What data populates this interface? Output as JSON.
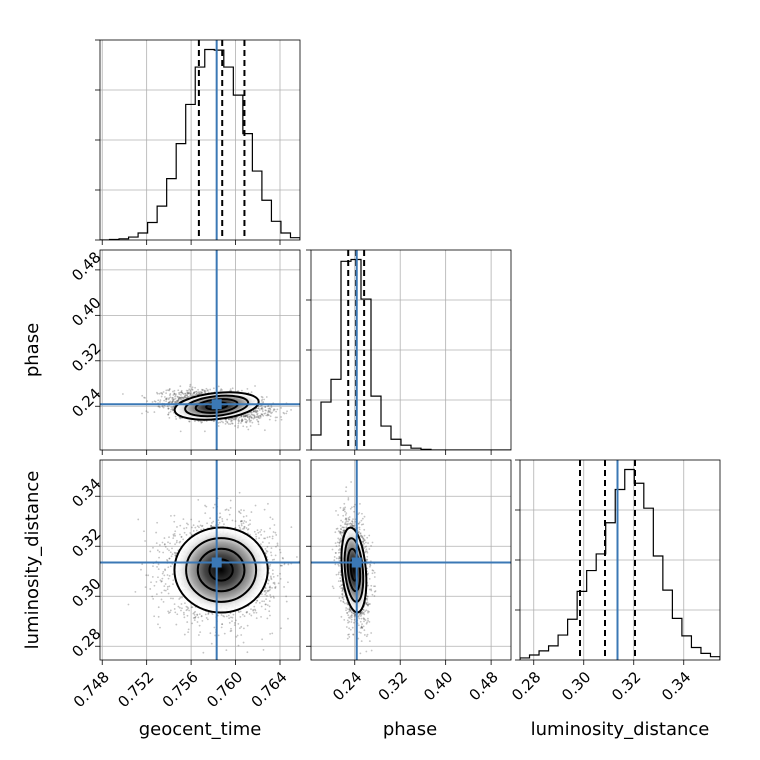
{
  "chart_data": {
    "type": "corner",
    "parameters": [
      "geocent_time",
      "phase",
      "luminosity_distance"
    ],
    "truth": {
      "geocent_time": 0.7583,
      "phase": 0.2435,
      "luminosity_distance": 0.3135
    },
    "quantiles": {
      "geocent_time": [
        0.7567,
        0.7588,
        0.7608
      ],
      "phase": [
        0.2285,
        0.2425,
        0.2565
      ],
      "luminosity_distance": [
        0.2985,
        0.3085,
        0.3205
      ]
    },
    "ranges": {
      "geocent_time": [
        0.7478,
        0.7658
      ],
      "phase": [
        0.163,
        0.515
      ],
      "luminosity_distance": [
        0.2745,
        0.3545
      ]
    },
    "ticks": {
      "geocent_time": [
        "0.748",
        "0.752",
        "0.756",
        "0.760",
        "0.764"
      ],
      "phase": [
        "0.24",
        "0.32",
        "0.40",
        "0.48"
      ],
      "luminosity_distance": [
        "0.28",
        "0.30",
        "0.32",
        "0.34"
      ]
    },
    "hist_counts": {
      "geocent_time": [
        0,
        1,
        2,
        5,
        12,
        30,
        58,
        105,
        165,
        232,
        296,
        326,
        325,
        296,
        248,
        182,
        118,
        68,
        32,
        12,
        4
      ],
      "phase": [
        25,
        80,
        118,
        315,
        318,
        252,
        90,
        40,
        18,
        8,
        3,
        1,
        0,
        0,
        0,
        0,
        0,
        0,
        0,
        0
      ],
      "luminosity_distance": [
        5,
        12,
        22,
        34,
        60,
        98,
        165,
        215,
        255,
        330,
        410,
        458,
        425,
        365,
        250,
        168,
        100,
        58,
        30,
        16,
        8
      ]
    },
    "contours_2d": {
      "phase_vs_geocent_time": {
        "center": [
          0.7583,
          0.2405
        ],
        "sigma": [
          0.0019,
          0.0115
        ],
        "rho": -0.3,
        "levels": [
          0.5,
          1.0,
          1.5,
          2.0
        ]
      },
      "luminosity_distance_vs_geocent_time": {
        "center": [
          0.7587,
          0.3105
        ],
        "sigma": [
          0.0021,
          0.0085
        ],
        "rho": 0.0,
        "levels": [
          0.5,
          1.0,
          1.5,
          2.0
        ]
      },
      "luminosity_distance_vs_phase": {
        "center": [
          0.2385,
          0.3105
        ],
        "sigma": [
          0.0105,
          0.0085
        ],
        "rho": -0.25,
        "levels": [
          0.5,
          1.0,
          1.5,
          2.0
        ]
      }
    },
    "xlabels": [
      "geocent_time",
      "phase",
      "luminosity_distance"
    ],
    "ylabels": [
      "",
      "phase",
      "luminosity_distance"
    ],
    "colors": {
      "truth": "#3b78b5",
      "hist": "#000000",
      "grid": "#b0b0b0"
    }
  }
}
